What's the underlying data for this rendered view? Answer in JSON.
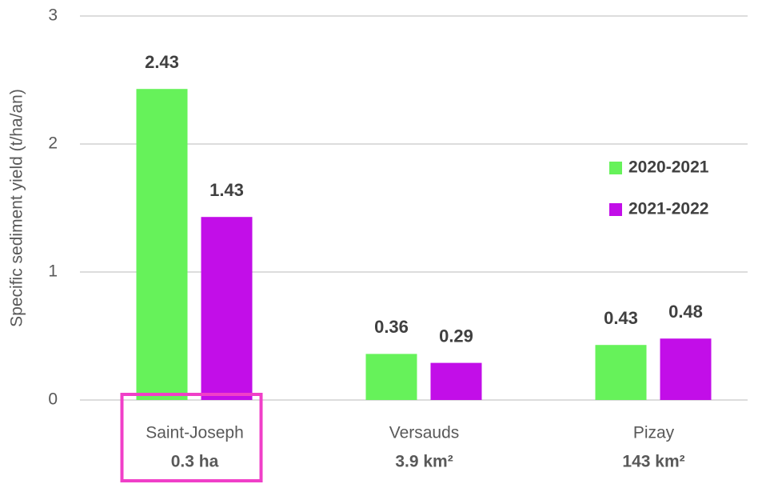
{
  "chart_data": {
    "type": "bar",
    "y_label": "Specific sediment yield (t/ha/an)",
    "categories": [
      "Saint-Joseph",
      "Versauds",
      "Pizay"
    ],
    "category_details": [
      "0.3 ha",
      "3.9 km²",
      "143 km²"
    ],
    "series": [
      {
        "name": "2020-2021",
        "color": "#66f25a",
        "values": [
          2.43,
          0.36,
          0.43
        ]
      },
      {
        "name": "2021-2022",
        "color": "#c20ee8",
        "values": [
          1.43,
          0.29,
          0.48
        ]
      }
    ],
    "ylim": [
      0,
      3
    ],
    "yticks": [
      0,
      1,
      2,
      3
    ],
    "grid": true,
    "legend": "right",
    "highlight": {
      "category": 0,
      "color": "#f03fc8"
    }
  }
}
